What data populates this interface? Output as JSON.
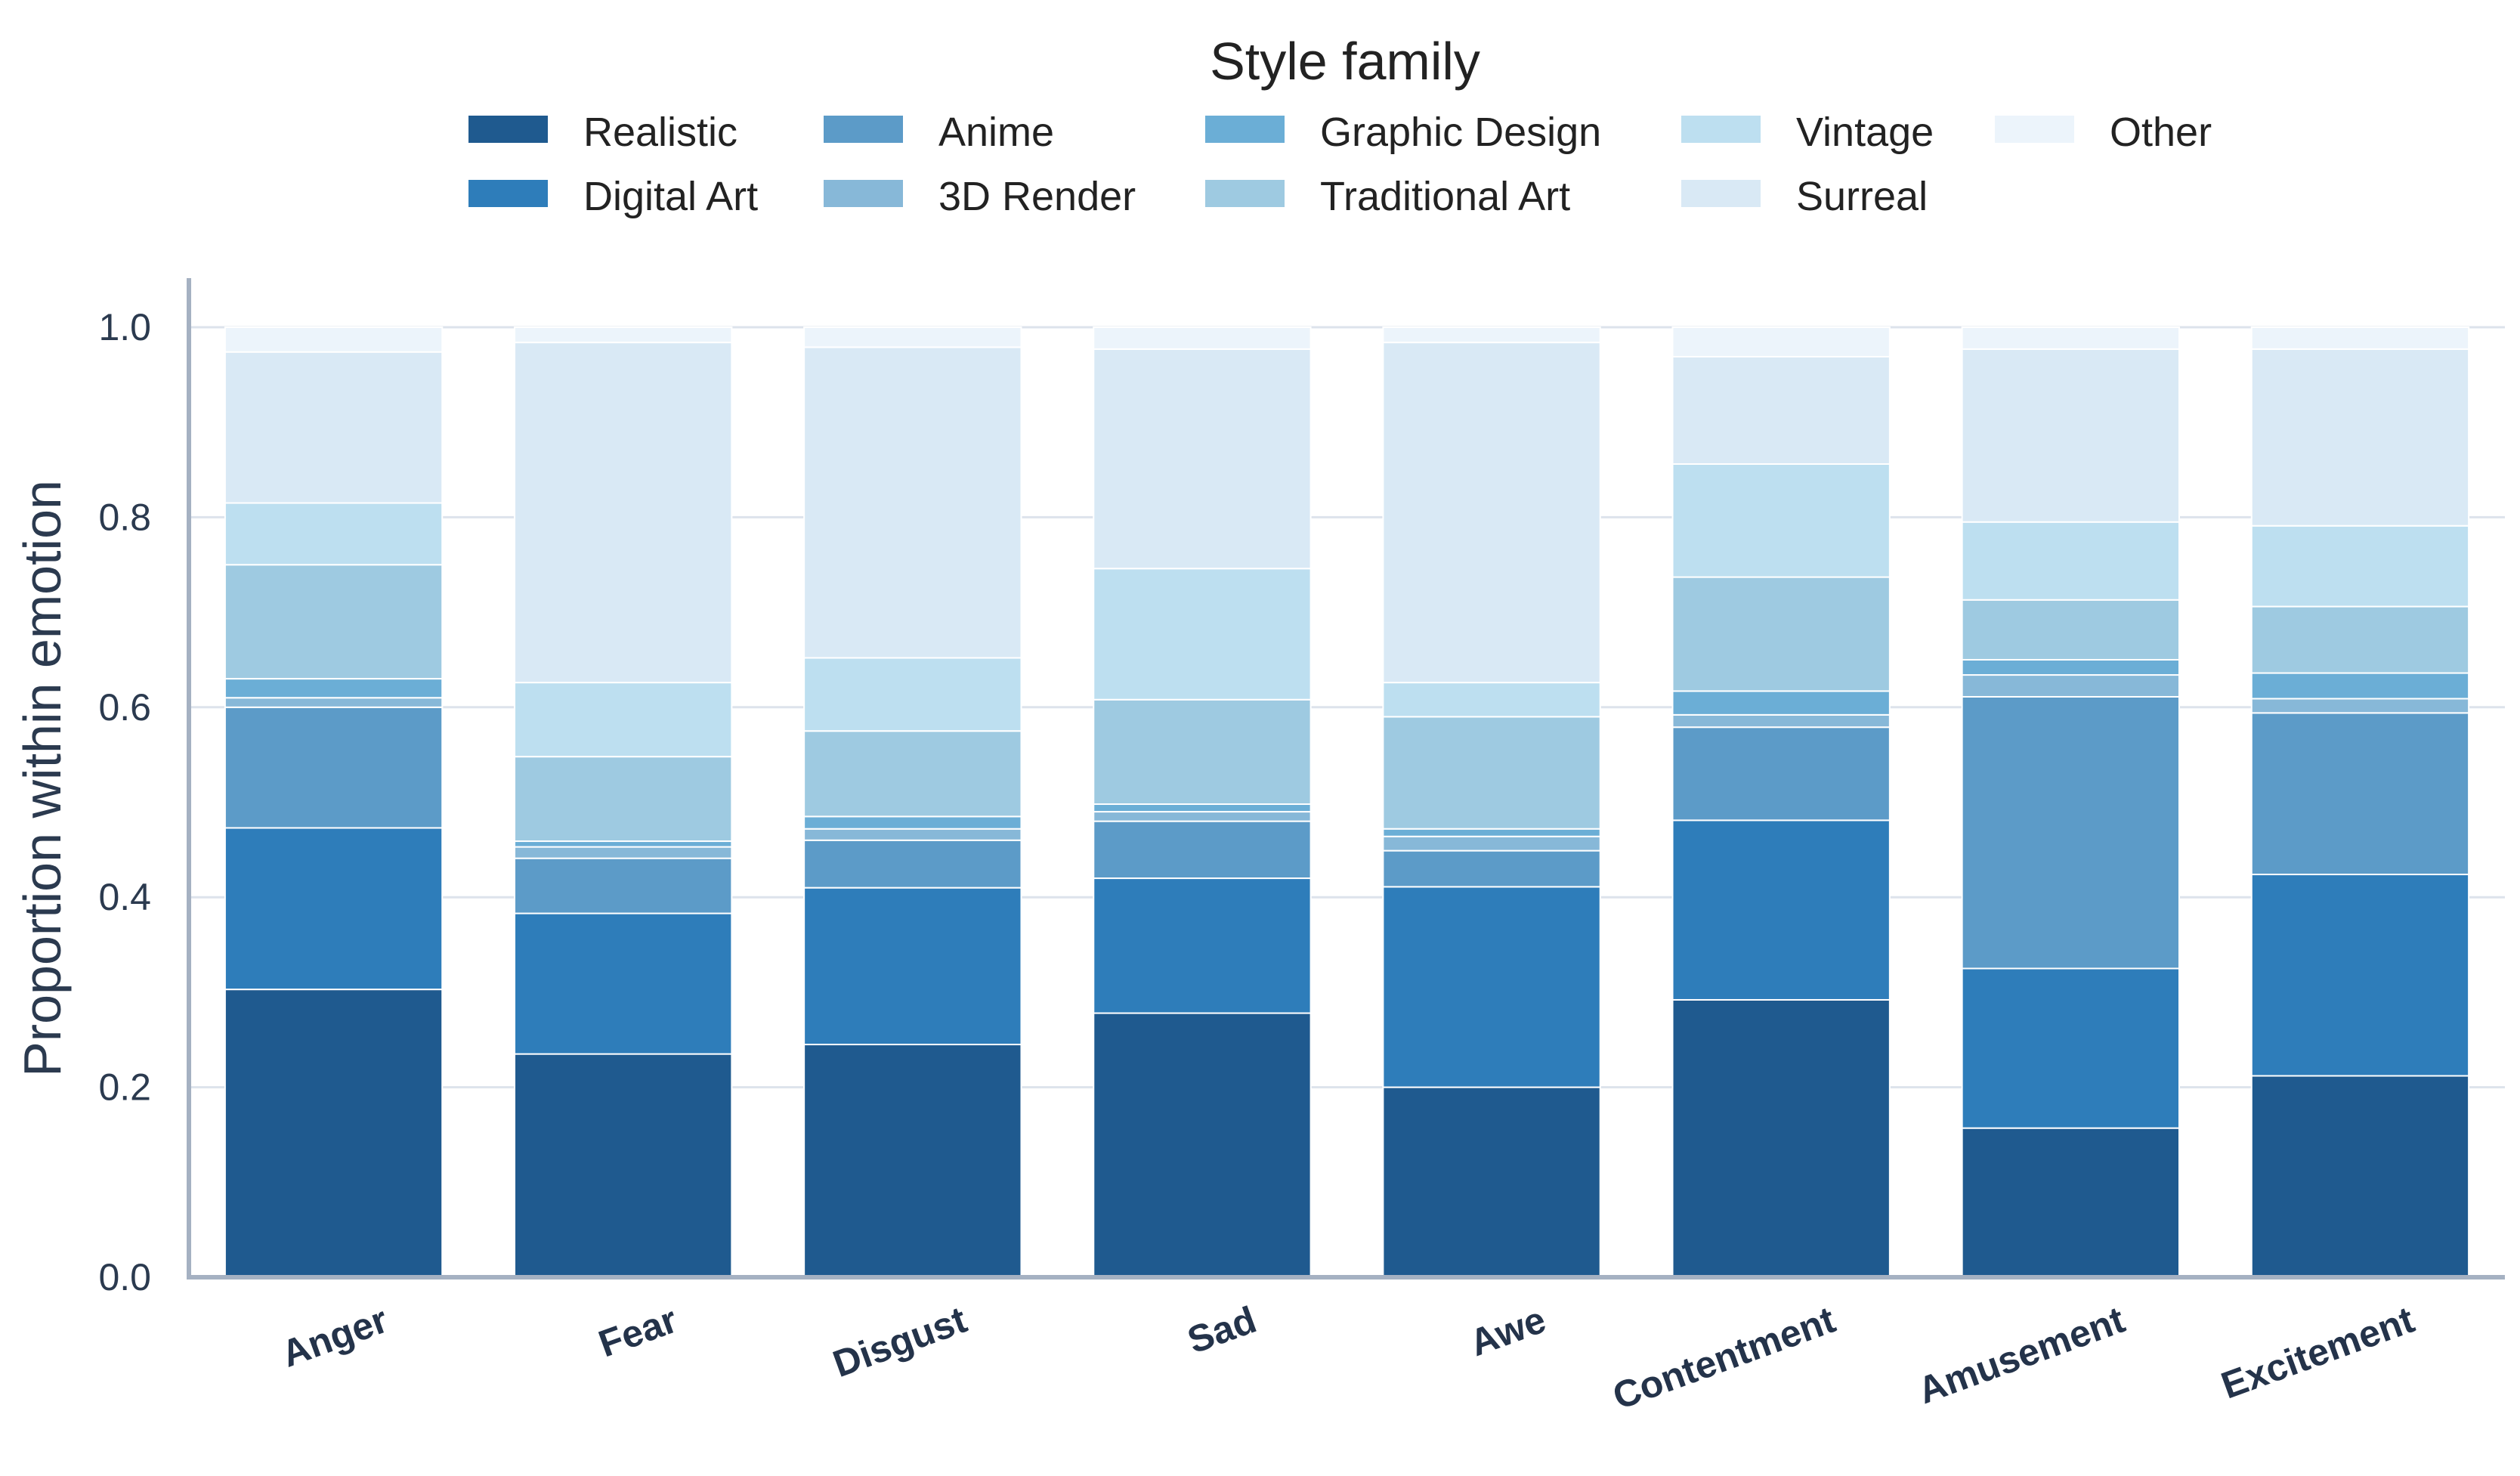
{
  "chart_data": {
    "type": "bar",
    "stacked": true,
    "title": "",
    "xlabel": "",
    "ylabel": "Proportion within emotion",
    "ylim": [
      0,
      1.05
    ],
    "yticks": [
      "0.0",
      "0.2",
      "0.4",
      "0.6",
      "0.8",
      "1.0"
    ],
    "grid": "horizontal",
    "legend": {
      "title": "Style family",
      "placement": "top-center",
      "columns": 5
    },
    "categories": [
      "Anger",
      "Fear",
      "Disgust",
      "Sad",
      "Awe",
      "Contentment",
      "Amusement",
      "Excitement"
    ],
    "series": [
      {
        "name": "Realistic",
        "color": "#1f5a8f",
        "values": [
          0.303,
          0.235,
          0.245,
          0.278,
          0.2,
          0.292,
          0.157,
          0.212
        ]
      },
      {
        "name": "Digital Art",
        "color": "#2e7dba",
        "values": [
          0.17,
          0.148,
          0.165,
          0.142,
          0.211,
          0.189,
          0.168,
          0.212
        ]
      },
      {
        "name": "Anime",
        "color": "#5c9bc8",
        "values": [
          0.127,
          0.058,
          0.05,
          0.06,
          0.038,
          0.098,
          0.286,
          0.17
        ]
      },
      {
        "name": "3D Render",
        "color": "#87b8d8",
        "values": [
          0.01,
          0.012,
          0.012,
          0.01,
          0.015,
          0.013,
          0.023,
          0.015
        ]
      },
      {
        "name": "Graphic Design",
        "color": "#6baed6",
        "values": [
          0.02,
          0.006,
          0.013,
          0.008,
          0.008,
          0.025,
          0.016,
          0.027
        ]
      },
      {
        "name": "Traditional Art",
        "color": "#9ecae1",
        "values": [
          0.12,
          0.089,
          0.09,
          0.11,
          0.118,
          0.12,
          0.063,
          0.07
        ]
      },
      {
        "name": "Vintage",
        "color": "#bddff0",
        "values": [
          0.065,
          0.078,
          0.077,
          0.138,
          0.036,
          0.119,
          0.082,
          0.085
        ]
      },
      {
        "name": "Surreal",
        "color": "#d9e9f5",
        "values": [
          0.159,
          0.358,
          0.327,
          0.231,
          0.358,
          0.113,
          0.182,
          0.186
        ]
      },
      {
        "name": "Other",
        "color": "#ecf4fb",
        "values": [
          0.026,
          0.016,
          0.021,
          0.023,
          0.016,
          0.031,
          0.023,
          0.023
        ]
      }
    ]
  }
}
